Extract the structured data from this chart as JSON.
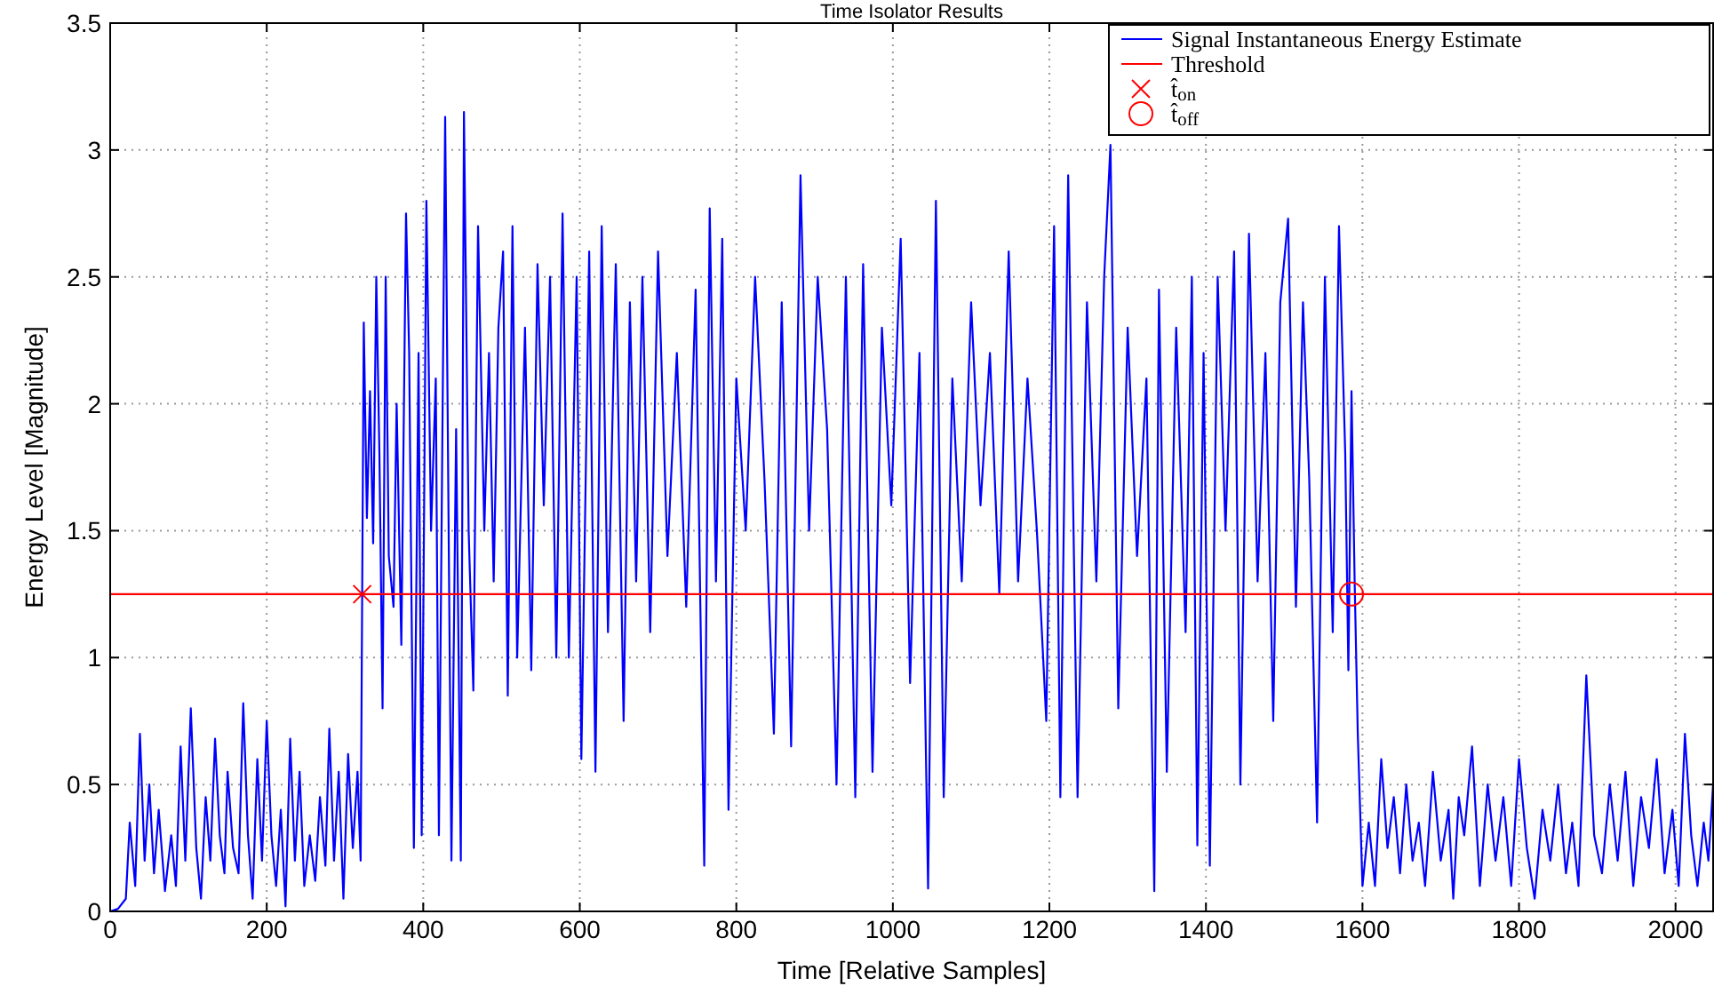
{
  "chart_data": {
    "type": "line",
    "title": "Time Isolator Results",
    "xlabel": "Time [Relative Samples]",
    "ylabel": "Energy Level [Magnitude]",
    "xlim": [
      0,
      2048
    ],
    "xticks": [
      0,
      200,
      400,
      600,
      800,
      1000,
      1200,
      1400,
      1600,
      1800,
      2000
    ],
    "ylim": [
      0,
      3.5
    ],
    "yticks": [
      0,
      0.5,
      1,
      1.5,
      2,
      2.5,
      3,
      3.5
    ],
    "grid": true,
    "legend": "top right",
    "series": [
      {
        "name": "Signal Instantaneous Energy Estimate",
        "color": "#0000ff",
        "marker": "none",
        "x": [
          0,
          10,
          20,
          25,
          32,
          38,
          44,
          50,
          56,
          62,
          70,
          78,
          84,
          90,
          96,
          103,
          110,
          116,
          122,
          128,
          134,
          140,
          146,
          150,
          157,
          164,
          170,
          176,
          182,
          188,
          194,
          200,
          206,
          212,
          218,
          224,
          230,
          236,
          242,
          248,
          255,
          262,
          268,
          275,
          280,
          286,
          292,
          298,
          304,
          310,
          316,
          320,
          324,
          328,
          332,
          336,
          340,
          344,
          348,
          352,
          356,
          362,
          366,
          372,
          378,
          382,
          388,
          394,
          398,
          404,
          410,
          416,
          420,
          428,
          436,
          442,
          448,
          452,
          458,
          464,
          470,
          478,
          484,
          490,
          496,
          502,
          508,
          514,
          520,
          530,
          538,
          546,
          554,
          562,
          570,
          578,
          586,
          596,
          602,
          612,
          620,
          628,
          636,
          646,
          656,
          664,
          672,
          680,
          690,
          700,
          712,
          724,
          736,
          748,
          759,
          766,
          774,
          782,
          790,
          800,
          812,
          824,
          836,
          848,
          858,
          870,
          882,
          893,
          904,
          916,
          928,
          940,
          952,
          962,
          974,
          986,
          998,
          1010,
          1022,
          1034,
          1045,
          1055,
          1065,
          1076,
          1088,
          1100,
          1112,
          1124,
          1136,
          1148,
          1160,
          1172,
          1184,
          1196,
          1206,
          1214,
          1224,
          1236,
          1248,
          1260,
          1270,
          1278,
          1288,
          1300,
          1312,
          1324,
          1334,
          1340,
          1350,
          1362,
          1374,
          1382,
          1389,
          1397,
          1405,
          1415,
          1425,
          1436,
          1444,
          1455,
          1466,
          1476,
          1486,
          1495,
          1505,
          1515,
          1524,
          1532,
          1542,
          1552,
          1562,
          1570,
          1578,
          1582,
          1586,
          1590,
          1594,
          1600,
          1608,
          1616,
          1624,
          1632,
          1640,
          1648,
          1656,
          1664,
          1672,
          1680,
          1690,
          1700,
          1710,
          1716,
          1723,
          1730,
          1740,
          1750,
          1760,
          1770,
          1780,
          1790,
          1800,
          1810,
          1820,
          1830,
          1840,
          1850,
          1860,
          1868,
          1876,
          1886,
          1896,
          1906,
          1916,
          1926,
          1936,
          1946,
          1956,
          1966,
          1976,
          1986,
          1996,
          2004,
          2012,
          2020,
          2028,
          2036,
          2042,
          2048
        ],
        "values": [
          0,
          0.01,
          0.05,
          0.35,
          0.1,
          0.7,
          0.2,
          0.5,
          0.15,
          0.4,
          0.08,
          0.3,
          0.1,
          0.65,
          0.2,
          0.8,
          0.25,
          0.05,
          0.45,
          0.2,
          0.68,
          0.3,
          0.15,
          0.55,
          0.25,
          0.15,
          0.82,
          0.3,
          0.05,
          0.6,
          0.2,
          0.75,
          0.3,
          0.1,
          0.4,
          0.02,
          0.68,
          0.2,
          0.55,
          0.1,
          0.3,
          0.12,
          0.45,
          0.18,
          0.72,
          0.2,
          0.55,
          0.05,
          0.62,
          0.25,
          0.55,
          0.2,
          2.32,
          1.55,
          2.05,
          1.45,
          2.5,
          1.8,
          0.8,
          2.5,
          1.4,
          1.2,
          2,
          1.05,
          2.75,
          2.2,
          0.25,
          2.2,
          0.3,
          2.8,
          1.5,
          2.1,
          0.3,
          3.13,
          0.2,
          1.9,
          0.2,
          3.15,
          1.5,
          0.87,
          2.7,
          1.5,
          2.2,
          1.3,
          2.3,
          2.6,
          0.85,
          2.7,
          1,
          2.3,
          0.95,
          2.55,
          1.6,
          2.5,
          1,
          2.75,
          1,
          2.5,
          0.6,
          2.6,
          0.55,
          2.7,
          1.1,
          2.55,
          0.75,
          2.4,
          1.3,
          2.5,
          1.1,
          2.6,
          1.4,
          2.2,
          1.2,
          2.45,
          0.18,
          2.77,
          1.3,
          2.65,
          0.4,
          2.1,
          1.5,
          2.5,
          1.7,
          0.7,
          2.4,
          0.65,
          2.9,
          1.5,
          2.5,
          1.9,
          0.5,
          2.5,
          0.45,
          2.55,
          0.55,
          2.3,
          1.6,
          2.65,
          0.9,
          2.2,
          0.09,
          2.8,
          0.45,
          2.1,
          1.3,
          2.4,
          1.6,
          2.2,
          1.25,
          2.6,
          1.3,
          2.1,
          1.5,
          0.75,
          2.7,
          0.45,
          2.9,
          0.45,
          2.4,
          1.3,
          2.5,
          3.02,
          0.8,
          2.3,
          1.4,
          2.1,
          0.08,
          2.45,
          0.55,
          2.3,
          1.1,
          2.5,
          0.26,
          2.2,
          0.18,
          2.5,
          1.5,
          2.6,
          0.5,
          2.67,
          1.3,
          2.2,
          0.75,
          2.4,
          2.73,
          1.2,
          2.4,
          1.7,
          0.35,
          2.5,
          1.1,
          2.7,
          1.8,
          0.95,
          2.05,
          1.3,
          0.7,
          0.1,
          0.35,
          0.1,
          0.6,
          0.25,
          0.45,
          0.15,
          0.5,
          0.2,
          0.35,
          0.1,
          0.55,
          0.2,
          0.4,
          0.05,
          0.45,
          0.3,
          0.65,
          0.1,
          0.5,
          0.2,
          0.45,
          0.1,
          0.6,
          0.25,
          0.05,
          0.4,
          0.2,
          0.5,
          0.15,
          0.35,
          0.1,
          0.93,
          0.3,
          0.15,
          0.5,
          0.2,
          0.55,
          0.1,
          0.45,
          0.25,
          0.6,
          0.15,
          0.4,
          0.1,
          0.7,
          0.3,
          0.1,
          0.35,
          0.2,
          0.5
        ]
      },
      {
        "name": "Threshold",
        "color": "#ff0000",
        "type": "line",
        "marker": "none",
        "x": [
          0,
          2048
        ],
        "values": [
          1.25,
          1.25
        ]
      },
      {
        "name": "t̂$_{on}$",
        "color": "#ff0000",
        "type": "scatter",
        "marker": "cross",
        "x": [
          322
        ],
        "values": [
          1.25
        ]
      },
      {
        "name": "t̂$_{off}$",
        "color": "#ff0000",
        "type": "scatter",
        "marker": "circle",
        "x": [
          1586
        ],
        "values": [
          1.25
        ]
      }
    ]
  }
}
